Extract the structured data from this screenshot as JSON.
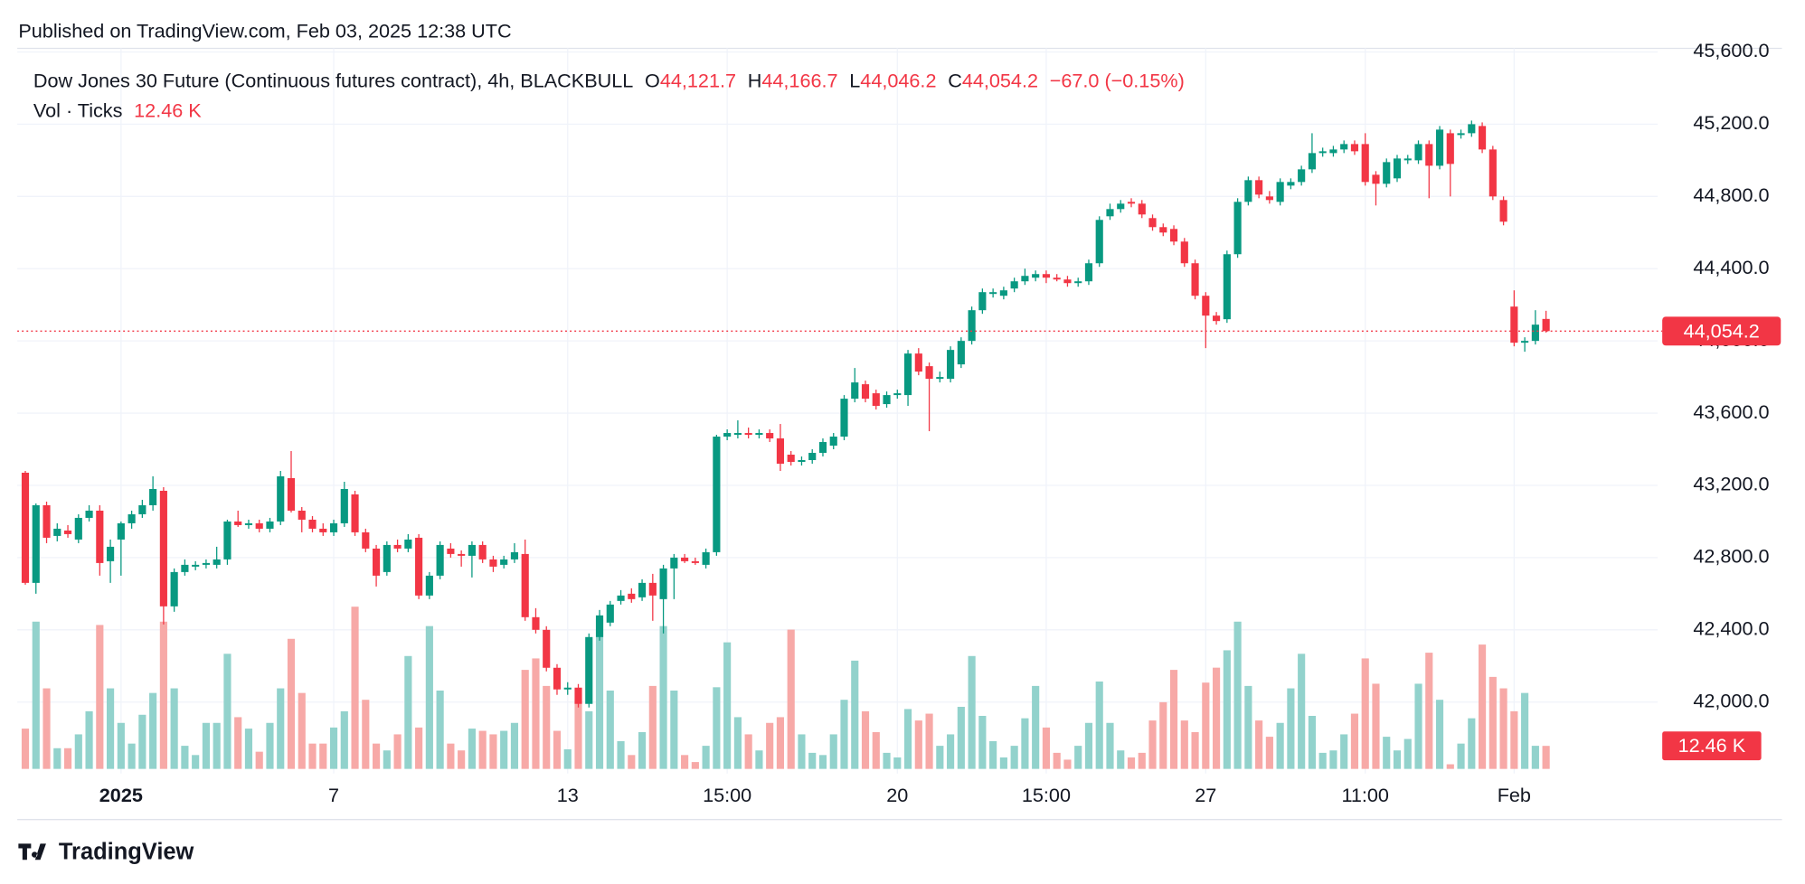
{
  "header": "Published on TradingView.com, Feb 03, 2025 12:38 UTC",
  "brand": "TradingView",
  "chart_data": {
    "type": "candlestick",
    "legend": {
      "symbol": "Dow Jones 30 Future (Continuous futures contract), 4h, BLACKBULL",
      "fields": [
        {
          "key": "O",
          "value": "44,121.7"
        },
        {
          "key": "H",
          "value": "44,166.7"
        },
        {
          "key": "L",
          "value": "44,046.2"
        },
        {
          "key": "C",
          "value": "44,054.2"
        }
      ],
      "change": "−67.0 (−0.15%)",
      "volume_name": "Vol · Ticks",
      "volume_value": "12.46 K"
    },
    "up_color": "#089981",
    "down_color": "#f23645",
    "volume_up_color": "#92d2cc",
    "volume_down_color": "#f7a9a7",
    "grid": true,
    "ylim": [
      41630,
      45620
    ],
    "yticks": [
      {
        "value": 42000,
        "label": "42,000.0"
      },
      {
        "value": 42400,
        "label": "42,400.0"
      },
      {
        "value": 42800,
        "label": "42,800.0"
      },
      {
        "value": 43200,
        "label": "43,200.0"
      },
      {
        "value": 43600,
        "label": "43,600.0"
      },
      {
        "value": 44000,
        "label": "44,000.0"
      },
      {
        "value": 44400,
        "label": "44,400.0"
      },
      {
        "value": 44800,
        "label": "44,800.0"
      },
      {
        "value": 45200,
        "label": "45,200.0"
      },
      {
        "value": 45600,
        "label": "45,600.0"
      }
    ],
    "categories": [
      null,
      null,
      null,
      null,
      null,
      null,
      null,
      null,
      null,
      "2025",
      null,
      null,
      null,
      null,
      null,
      null,
      null,
      null,
      null,
      null,
      null,
      null,
      null,
      null,
      null,
      null,
      null,
      null,
      null,
      "7",
      null,
      null,
      null,
      null,
      null,
      null,
      null,
      null,
      null,
      null,
      null,
      null,
      null,
      null,
      null,
      null,
      null,
      null,
      null,
      null,
      null,
      "13",
      null,
      null,
      null,
      null,
      null,
      null,
      null,
      null,
      null,
      null,
      null,
      null,
      null,
      null,
      "15:00",
      null,
      null,
      null,
      null,
      null,
      null,
      null,
      null,
      null,
      null,
      null,
      null,
      null,
      null,
      null,
      "20",
      null,
      null,
      null,
      null,
      null,
      null,
      null,
      null,
      null,
      null,
      null,
      null,
      null,
      "15:00",
      null,
      null,
      null,
      null,
      null,
      null,
      null,
      null,
      null,
      null,
      null,
      null,
      null,
      null,
      "27",
      null,
      null,
      null,
      null,
      null,
      null,
      null,
      null,
      null,
      null,
      null,
      null,
      null,
      null,
      "11:00",
      null,
      null,
      null,
      null,
      null,
      null,
      null,
      null,
      null,
      null,
      null,
      null,
      null,
      "Feb",
      null,
      null,
      null
    ],
    "open": [
      43270,
      42660,
      43090,
      42920,
      42950,
      42900,
      43020,
      43060,
      42780,
      42900,
      42990,
      43040,
      43090,
      43170,
      42530,
      42720,
      42750,
      42760,
      42760,
      42790,
      43000,
      42980,
      42990,
      42960,
      43000,
      43240,
      43060,
      43010,
      42960,
      42940,
      42990,
      43150,
      42940,
      42850,
      42720,
      42870,
      42850,
      42910,
      42590,
      42700,
      42850,
      42820,
      42810,
      42870,
      42790,
      42760,
      42790,
      42820,
      42470,
      42400,
      42190,
      42070,
      42080,
      41990,
      42360,
      42440,
      42560,
      42600,
      42580,
      42660,
      42570,
      42740,
      42800,
      42780,
      42760,
      42830,
      43470,
      43480,
      43490,
      43480,
      43490,
      43460,
      43370,
      43330,
      43340,
      43380,
      43420,
      43470,
      43680,
      43760,
      43710,
      43650,
      43700,
      43700,
      43930,
      43860,
      43790,
      43790,
      43870,
      44000,
      44170,
      44260,
      44250,
      44290,
      44330,
      44350,
      44370,
      44350,
      44340,
      44320,
      44330,
      44430,
      44690,
      44730,
      44770,
      44760,
      44680,
      44630,
      44620,
      44550,
      44430,
      44250,
      44140,
      44120,
      44480,
      44770,
      44890,
      44800,
      44770,
      44860,
      44880,
      44950,
      45040,
      45040,
      45060,
      45090,
      45090,
      44920,
      44870,
      44900,
      45000,
      45000,
      45090,
      44970,
      45150,
      45140,
      45150,
      45190,
      45060,
      44780,
      44190,
      43990,
      44000,
      44121.7
    ],
    "high": [
      43280,
      43100,
      43110,
      42990,
      42980,
      43040,
      43090,
      43090,
      42900,
      43000,
      43060,
      43120,
      43250,
      43190,
      42740,
      42790,
      42780,
      42790,
      42860,
      43010,
      43060,
      43010,
      43010,
      43020,
      43280,
      43390,
      43080,
      43030,
      42990,
      43010,
      43220,
      43170,
      42960,
      42870,
      42890,
      42900,
      42930,
      42930,
      42720,
      42890,
      42880,
      42840,
      42890,
      42890,
      42810,
      42810,
      42880,
      42900,
      42520,
      42420,
      42210,
      42110,
      42100,
      42380,
      42510,
      42560,
      42620,
      42630,
      42680,
      42710,
      42760,
      42820,
      42820,
      42800,
      42850,
      43480,
      43510,
      43560,
      43520,
      43510,
      43510,
      43540,
      43390,
      43360,
      43400,
      43460,
      43490,
      43700,
      43850,
      43780,
      43730,
      43720,
      43730,
      43950,
      43960,
      43880,
      43830,
      43970,
      44020,
      44190,
      44290,
      44290,
      44300,
      44350,
      44400,
      44390,
      44390,
      44370,
      44360,
      44350,
      44450,
      44690,
      44760,
      44780,
      44790,
      44780,
      44700,
      44650,
      44640,
      44570,
      44450,
      44270,
      44160,
      44500,
      44790,
      44910,
      44910,
      44830,
      44900,
      44900,
      44970,
      45150,
      45070,
      45080,
      45110,
      45110,
      45150,
      44940,
      45010,
      45030,
      45030,
      45110,
      45110,
      45190,
      45170,
      45170,
      45220,
      45210,
      45080,
      44800,
      44280,
      44020,
      44170,
      44166.7
    ],
    "low": [
      42650,
      42600,
      42880,
      42890,
      42910,
      42880,
      43000,
      42700,
      42660,
      42700,
      42960,
      43020,
      43060,
      42430,
      42500,
      42700,
      42730,
      42740,
      42740,
      42760,
      42970,
      42960,
      42940,
      42940,
      42980,
      43050,
      42940,
      42940,
      42920,
      42920,
      42970,
      42920,
      42830,
      42640,
      42700,
      42830,
      42830,
      42570,
      42570,
      42680,
      42800,
      42750,
      42690,
      42770,
      42720,
      42740,
      42770,
      42450,
      42380,
      42170,
      42040,
      42040,
      41970,
      41970,
      42340,
      42420,
      42540,
      42550,
      42560,
      42450,
      42380,
      42570,
      42770,
      42760,
      42740,
      42810,
      43450,
      43460,
      43460,
      43460,
      43440,
      43280,
      43310,
      43310,
      43320,
      43360,
      43400,
      43450,
      43660,
      43660,
      43620,
      43630,
      43680,
      43640,
      43810,
      43500,
      43770,
      43770,
      43850,
      43980,
      44150,
      44240,
      44230,
      44270,
      44310,
      44330,
      44320,
      44330,
      44300,
      44300,
      44310,
      44410,
      44670,
      44710,
      44740,
      44680,
      44610,
      44580,
      44530,
      44410,
      44230,
      43960,
      44090,
      44100,
      44460,
      44750,
      44790,
      44760,
      44750,
      44840,
      44860,
      44930,
      45020,
      45020,
      45040,
      45030,
      44860,
      44750,
      44850,
      44880,
      44980,
      44980,
      44790,
      44950,
      44800,
      45120,
      45130,
      45040,
      44780,
      44640,
      43970,
      43940,
      43980,
      44046.2
    ],
    "close": [
      42660,
      43090,
      42910,
      42960,
      42930,
      43020,
      43060,
      42770,
      42860,
      42990,
      43040,
      43090,
      43180,
      42530,
      42720,
      42760,
      42760,
      42770,
      42790,
      43000,
      42980,
      42990,
      42960,
      43000,
      43250,
      43060,
      43010,
      42960,
      42940,
      42990,
      43180,
      42940,
      42850,
      42700,
      42870,
      42850,
      42900,
      42590,
      42700,
      42870,
      42820,
      42810,
      42870,
      42790,
      42750,
      42790,
      42830,
      42470,
      42400,
      42190,
      42070,
      42080,
      41990,
      42360,
      42480,
      42540,
      42590,
      42570,
      42660,
      42590,
      42740,
      42800,
      42780,
      42770,
      42830,
      43470,
      43490,
      43490,
      43480,
      43490,
      43460,
      43320,
      43330,
      43340,
      43380,
      43440,
      43470,
      43680,
      43770,
      43680,
      43640,
      43700,
      43710,
      43930,
      43830,
      43790,
      43800,
      43950,
      44000,
      44170,
      44270,
      44270,
      44280,
      44330,
      44360,
      44370,
      44350,
      44340,
      44320,
      44330,
      44430,
      44670,
      44730,
      44760,
      44760,
      44700,
      44630,
      44600,
      44550,
      44430,
      44250,
      44140,
      44110,
      44480,
      44770,
      44890,
      44810,
      44780,
      44880,
      44880,
      44950,
      45040,
      45050,
      45060,
      45090,
      45050,
      44880,
      44870,
      44990,
      45010,
      45010,
      45090,
      44970,
      45170,
      44980,
      45150,
      45200,
      45060,
      44800,
      44660,
      43990,
      44000,
      44090,
      44054.2
    ],
    "volume": [
      21.8,
      79.7,
      43.6,
      11.2,
      11.2,
      18.7,
      31.2,
      77.9,
      43.6,
      24.9,
      13.7,
      29.3,
      41.1,
      79.7,
      43.6,
      12.5,
      7.5,
      24.9,
      24.9,
      62.3,
      28,
      21.8,
      9.3,
      24.9,
      43.6,
      70.4,
      41.1,
      13.7,
      13.7,
      22.4,
      31.2,
      87.8,
      37.4,
      13.7,
      10,
      18.7,
      61.1,
      22.4,
      77.3,
      42.4,
      13.7,
      10,
      21.8,
      20.6,
      18.7,
      20.6,
      24.9,
      53.6,
      59.8,
      44.9,
      20.6,
      10.6,
      37.4,
      31.2,
      81,
      42.4,
      15,
      7.5,
      19.9,
      44.9,
      77.3,
      42.4,
      7.5,
      3.7,
      12.5,
      44.2,
      68.5,
      28,
      18.7,
      10,
      24.9,
      28,
      75.4,
      18.7,
      8.7,
      7.5,
      18.7,
      37.4,
      58.6,
      31.2,
      19.9,
      8.7,
      6.2,
      32.4,
      26.2,
      29.9,
      12.5,
      18.7,
      33.6,
      61.1,
      28.7,
      15,
      6.2,
      12.5,
      27.4,
      44.9,
      22.4,
      8.7,
      5,
      12.5,
      24.9,
      47.3,
      24.9,
      10,
      6.2,
      8.7,
      26.2,
      36.1,
      53.6,
      26.2,
      19.9,
      46.7,
      54.8,
      64.2,
      79.7,
      44.9,
      26.2,
      17.4,
      24.9,
      43.6,
      62.3,
      28.7,
      8.7,
      10,
      18.7,
      29.9,
      59.8,
      46.1,
      17.4,
      10,
      16.2,
      46.1,
      62.9,
      37.4,
      2.5,
      13.7,
      27.4,
      67.3,
      49.8,
      43.6,
      31.2,
      41.1,
      12.5,
      12.46
    ]
  }
}
